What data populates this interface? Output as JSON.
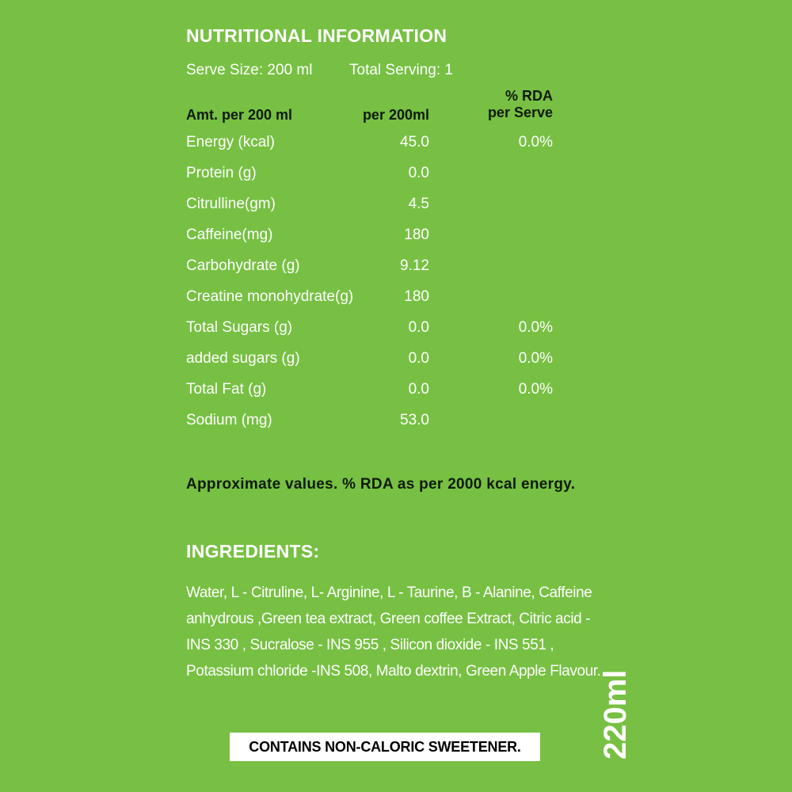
{
  "title": "NUTRITIONAL INFORMATION",
  "serve_size": "Serve Size: 200 ml",
  "total_serving": "Total Serving: 1",
  "columns": {
    "name": "Amt. per 200 ml",
    "per": "per 200ml",
    "rda_line1": "% RDA",
    "rda_line2": "per Serve"
  },
  "rows": [
    {
      "name": "Energy (kcal)",
      "value": "45.0",
      "rda": "0.0%"
    },
    {
      "name": "Protein (g)",
      "value": "0.0",
      "rda": ""
    },
    {
      "name": "Citrulline(gm)",
      "value": "4.5",
      "rda": ""
    },
    {
      "name": "Caffeine(mg)",
      "value": "180",
      "rda": ""
    },
    {
      "name": "Carbohydrate (g)",
      "value": "9.12",
      "rda": ""
    },
    {
      "name": "Creatine monohydrate(g)",
      "value": "180",
      "rda": ""
    },
    {
      "name": "Total Sugars (g)",
      "value": "0.0",
      "rda": "0.0%"
    },
    {
      "name": "added sugars (g)",
      "value": "0.0",
      "rda": "0.0%"
    },
    {
      "name": "Total Fat (g)",
      "value": "0.0",
      "rda": "0.0%"
    },
    {
      "name": "Sodium (mg)",
      "value": "53.0",
      "rda": ""
    }
  ],
  "note": "Approximate values. % RDA as per 2000 kcal energy.",
  "ingredients_title": "INGREDIENTS:",
  "ingredients_text": "Water, L - Citruline, L- Arginine, L - Taurine, B - Alanine, Caffeine anhydrous ,Green tea extract, Green coffee Extract, Citric acid - INS 330 , Sucralose - INS 955 , Silicon dioxide - INS 551 , Potassium chloride -INS 508, Malto dextrin, Green Apple Flavour.",
  "warning": "CONTAINS NON-CALORIC SWEETENER.",
  "volume": "220ml",
  "colors": {
    "background": "#77c043",
    "text_light": "#ffffff",
    "text_dark": "#0f1a0a"
  }
}
